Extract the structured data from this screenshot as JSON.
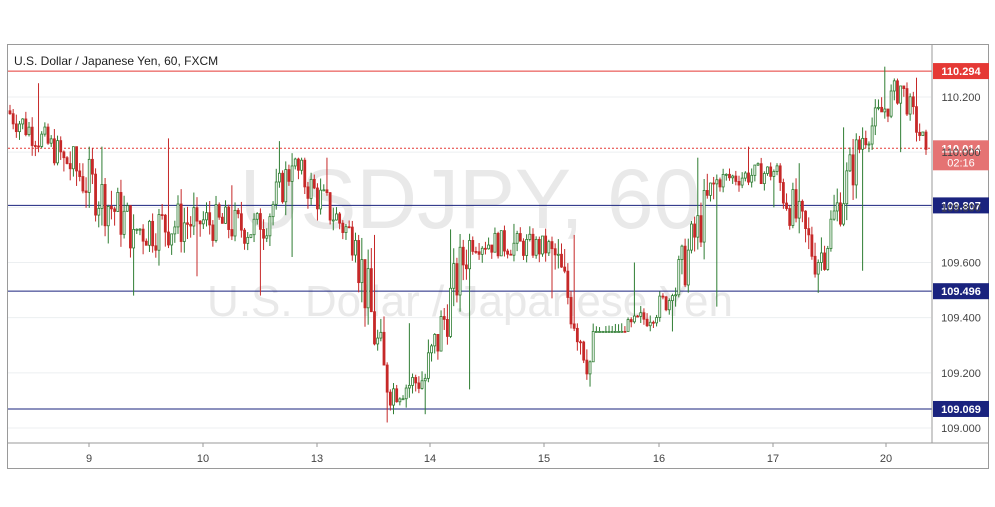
{
  "header": {
    "title": "U.S. Dollar / Japanese Yen, 60, FXCM"
  },
  "watermark": {
    "symbol": "USDJPY, 60",
    "name": "U.S. Dollar / Japanese Yen"
  },
  "colors": {
    "up": "#2e7d32",
    "down": "#c62828",
    "resistance": "#e53935",
    "support": "#1a237e",
    "price_label_bg": "#e57373",
    "grid": "#eceff1"
  },
  "chart_data": {
    "type": "candlestick",
    "title": "U.S. Dollar / Japanese Yen, 60, FXCM",
    "ylim": [
      108.95,
      110.33
    ],
    "y_ticks": [
      "109.000",
      "109.200",
      "109.400",
      "109.600",
      "109.800",
      "110.000",
      "110.200"
    ],
    "x_ticks": [
      "9",
      "10",
      "13",
      "14",
      "15",
      "16",
      "17",
      "20"
    ],
    "levels": [
      {
        "value": 110.294,
        "label": "110.294",
        "kind": "resistance"
      },
      {
        "value": 109.807,
        "label": "109.807",
        "kind": "support"
      },
      {
        "value": 109.496,
        "label": "109.496",
        "kind": "support"
      },
      {
        "value": 109.069,
        "label": "109.069",
        "kind": "support"
      }
    ],
    "last_price": {
      "value": 110.014,
      "label": "110.014",
      "countdown": "02:16"
    },
    "segments": [
      {
        "day": "9",
        "bars": 18,
        "open": 110.15,
        "close": 109.98,
        "high": 110.25,
        "low": 109.93
      },
      {
        "day": "9",
        "bars": 22,
        "open": 109.98,
        "close": 109.72,
        "high": 110.02,
        "low": 109.48
      },
      {
        "day": "10",
        "bars": 20,
        "open": 109.72,
        "close": 109.75,
        "high": 110.05,
        "low": 109.55
      },
      {
        "day": "10",
        "bars": 20,
        "open": 109.75,
        "close": 109.72,
        "high": 109.88,
        "low": 109.48
      },
      {
        "day": "13",
        "bars": 10,
        "open": 109.72,
        "close": 109.95,
        "high": 110.04,
        "low": 109.62
      },
      {
        "day": "13",
        "bars": 20,
        "open": 109.95,
        "close": 109.68,
        "high": 109.98,
        "low": 109.6
      },
      {
        "day": "13",
        "bars": 10,
        "open": 109.68,
        "close": 109.13,
        "high": 109.7,
        "low": 109.02
      },
      {
        "day": "14",
        "bars": 12,
        "open": 109.13,
        "close": 109.18,
        "high": 109.38,
        "low": 109.05
      },
      {
        "day": "14",
        "bars": 14,
        "open": 109.18,
        "close": 109.68,
        "high": 109.72,
        "low": 109.14
      },
      {
        "day": "15",
        "bars": 26,
        "open": 109.68,
        "close": 109.65,
        "high": 109.74,
        "low": 109.47
      },
      {
        "day": "15",
        "bars": 12,
        "open": 109.65,
        "close": 109.24,
        "high": 109.7,
        "low": 109.15
      },
      {
        "day": "16",
        "bars": 26,
        "open": 109.24,
        "close": 109.48,
        "high": 109.6,
        "low": 109.35
      },
      {
        "day": "16",
        "bars": 14,
        "open": 109.48,
        "close": 109.9,
        "high": 109.98,
        "low": 109.44
      },
      {
        "day": "17",
        "bars": 18,
        "open": 109.9,
        "close": 109.93,
        "high": 110.02,
        "low": 109.8
      },
      {
        "day": "17",
        "bars": 14,
        "open": 109.93,
        "close": 109.6,
        "high": 109.96,
        "low": 109.49
      },
      {
        "day": "17",
        "bars": 14,
        "open": 109.6,
        "close": 110.05,
        "high": 110.09,
        "low": 109.57
      },
      {
        "day": "20",
        "bars": 12,
        "open": 110.05,
        "close": 110.24,
        "high": 110.31,
        "low": 110.0
      },
      {
        "day": "20",
        "bars": 8,
        "open": 110.24,
        "close": 110.01,
        "high": 110.27,
        "low": 109.99
      }
    ]
  }
}
